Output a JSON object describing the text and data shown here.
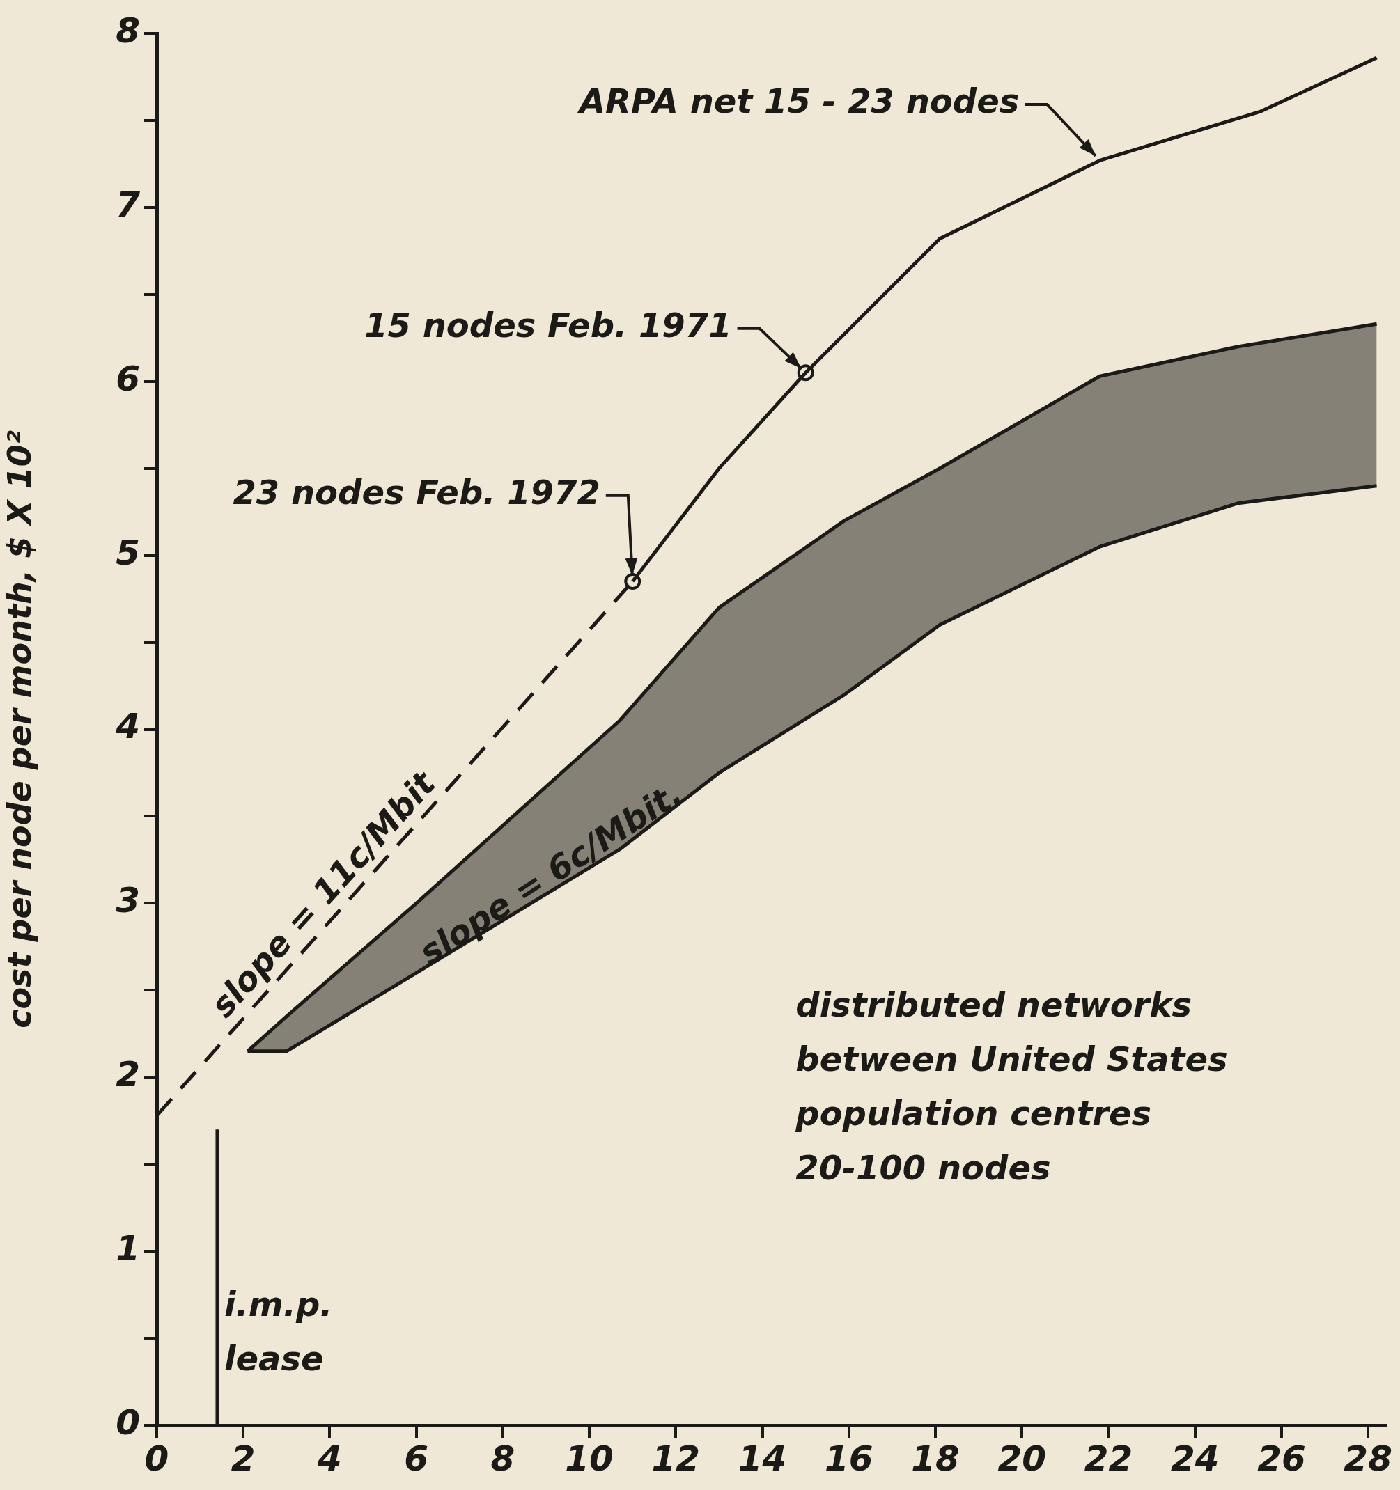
{
  "chart_data": {
    "type": "line",
    "ylabel": "cost per node per month, $ X 10²",
    "xlim": [
      0,
      28.4
    ],
    "ylim": [
      0,
      8
    ],
    "xticks": [
      0,
      2,
      4,
      6,
      8,
      10,
      12,
      14,
      16,
      18,
      20,
      22,
      24,
      26,
      28
    ],
    "yticks": [
      0,
      {
        "value": 0.5,
        "label": null
      },
      1,
      {
        "value": 1.5,
        "label": null
      },
      2,
      {
        "value": 2.5,
        "label": null
      },
      3,
      {
        "value": 3.5,
        "label": null
      },
      4,
      {
        "value": 4.5,
        "label": null
      },
      5,
      {
        "value": 5.5,
        "label": null
      },
      6,
      {
        "value": 6.5,
        "label": null
      },
      7,
      {
        "value": 7.5,
        "label": null
      },
      8
    ],
    "grid": false,
    "legend": false,
    "series": [
      {
        "type": "line",
        "color": "#1c1a17",
        "x": [
          11,
          13,
          15,
          18.1,
          21.8,
          25.5,
          28.2
        ],
        "values": [
          4.85,
          5.5,
          6.05,
          6.82,
          7.27,
          7.55,
          7.86
        ]
      },
      {
        "type": "line",
        "line_style": "dashed",
        "color": "#1c1a17",
        "x": [
          0,
          11
        ],
        "values": [
          1.78,
          4.85
        ]
      },
      {
        "type": "scatter",
        "marker": "circle",
        "color": "#1c1a17",
        "x": [
          11,
          15
        ],
        "values": [
          4.85,
          6.05
        ]
      },
      {
        "type": "line",
        "color": "#1c1a17",
        "x": [
          2.1,
          3.0,
          6,
          10.7,
          13,
          15.9,
          18.1,
          21.8,
          25,
          28.2
        ],
        "values": [
          2.15,
          2.15,
          2.6,
          3.31,
          3.75,
          4.2,
          4.6,
          5.05,
          5.3,
          5.4
        ]
      },
      {
        "type": "area",
        "color": "#1c1a17",
        "x": [
          2.1,
          3.0,
          6,
          10.7,
          13,
          15.9,
          18.1,
          21.8,
          25,
          28.2
        ],
        "values": [
          2.15,
          2.35,
          3.0,
          4.05,
          4.7,
          5.2,
          5.5,
          6.03,
          6.2,
          6.33
        ]
      },
      {
        "type": "line",
        "color": "#1c1a17",
        "x": [
          1.4,
          1.4
        ],
        "values": [
          0,
          1.7
        ]
      }
    ],
    "annotations": [
      {
        "text": "ARPA net 15 - 23 nodes",
        "x": 21.8,
        "y": 7.27
      },
      {
        "text": "15 nodes Feb. 1971",
        "x": 15,
        "y": 6.05
      },
      {
        "text": "23 nodes Feb. 1972",
        "x": 11,
        "y": 4.85
      },
      "slope = 11c/Mbit",
      "slope = 6c/Mbit.",
      "distributed networks\nbetween United States\npopulation centres\n20-100 nodes",
      "i.m.p.\nlease"
    ]
  }
}
